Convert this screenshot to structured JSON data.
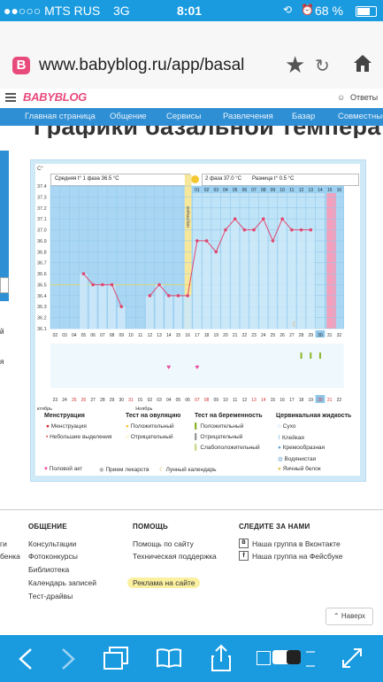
{
  "status_bar": {
    "carrier": "●●○○○ MTS RUS",
    "network": "3G",
    "time": "8:01",
    "battery": "68 %"
  },
  "browser": {
    "url": "www.babyblog.ru/app/basal"
  },
  "site": {
    "logo": "BABYBLOG",
    "answers": "Ответы"
  },
  "nav": {
    "items": [
      "Главная страница",
      "Общение",
      "Сервисы",
      "Развлечения",
      "Базар",
      "Совместные"
    ]
  },
  "page_title": "Графики базальной температуры",
  "chart_header": {
    "phase1": "Средняя t° 1 фаза 36.5 °C",
    "phase2": "2 фаза 37.0 °C",
    "diff": "Разница t° 0.5 °C",
    "unit": "C°",
    "ovulation": "овуляция"
  },
  "chart_data": {
    "type": "line",
    "y_ticks": [
      "37.4",
      "37.3",
      "37.2",
      "37.1",
      "37.0",
      "36.9",
      "36.8",
      "36.7",
      "36.6",
      "36.5",
      "36.4",
      "36.3",
      "36.2",
      "36.1"
    ],
    "ylim": [
      36.1,
      37.4
    ],
    "cycle_days": [
      "02",
      "03",
      "04",
      "05",
      "06",
      "07",
      "08",
      "09",
      "10",
      "11",
      "12",
      "13",
      "14",
      "15",
      "16",
      "17",
      "18",
      "19",
      "20",
      "21",
      "22",
      "23",
      "24",
      "25",
      "26",
      "27",
      "28",
      "29",
      "30",
      "31",
      "32"
    ],
    "cycle_days_phase2_top": [
      "01",
      "02",
      "03",
      "04",
      "05",
      "06",
      "07",
      "08",
      "09",
      "10",
      "11",
      "12",
      "13",
      "14",
      "15",
      "16"
    ],
    "dates": [
      "23",
      "24",
      "25",
      "26",
      "27",
      "28",
      "29",
      "30",
      "31",
      "01",
      "02",
      "03",
      "04",
      "05",
      "06",
      "07",
      "08",
      "09",
      "10",
      "11",
      "12",
      "13",
      "14",
      "15",
      "16",
      "17",
      "18",
      "19",
      "20",
      "21",
      "22"
    ],
    "month1": "ктябрь",
    "month2": "Ноябрь",
    "series": [
      {
        "values": [
          null,
          null,
          null,
          36.6,
          36.5,
          36.5,
          36.5,
          36.3,
          null,
          null,
          36.4,
          36.5,
          36.4,
          36.4,
          36.4,
          36.9,
          36.9,
          36.8,
          37.0,
          37.1,
          37.0,
          37.0,
          37.1,
          36.9,
          37.1,
          37.0,
          37.0,
          37.0,
          null,
          null,
          null
        ]
      }
    ]
  },
  "legend": {
    "menstruation": {
      "title": "Менструация",
      "items": [
        "Менструация",
        "Небольшие выделения"
      ]
    },
    "ovulation_test": {
      "title": "Тест на овуляцию",
      "items": [
        "Положительный",
        "Отрицательный"
      ]
    },
    "pregnancy_test": {
      "title": "Тест на беременность",
      "items": [
        "Положительный",
        "Отрицательный",
        "Слабоположительный"
      ]
    },
    "cervical": {
      "title": "Цервикальная жидкость",
      "items": [
        "Сухо",
        "Клейкая",
        "Кремообразная",
        "Водянистая",
        "Яичный белок"
      ]
    },
    "bottom": [
      "Половой акт",
      "Прием лекарств",
      "Лунный календарь"
    ]
  },
  "footer": {
    "col1": {
      "title": "ОБЩЕНИЕ",
      "items": [
        "Консультации",
        "Фотоконкурсы",
        "Библиотека",
        "Календарь записей",
        "Тест-драйвы"
      ]
    },
    "col2": {
      "title": "ПОМОЩЬ",
      "items": [
        "Помощь по сайту",
        "Техническая поддержка",
        "Реклама на сайте"
      ]
    },
    "col3": {
      "title": "СЛЕДИТЕ ЗА НАМИ",
      "items": [
        "Наша группа в Вконтакте",
        "Наша группа на Фейсбуке"
      ]
    },
    "side_cut": [
      "ги",
      "бенка"
    ],
    "back_to_top": "Наверх"
  },
  "left_cut": [
    "й",
    "я",
    "и"
  ],
  "colors": {
    "accent": "#1a9be0",
    "nav": "#2f8fd4",
    "chart_bg": "#cfe9f7",
    "line": "#e04870"
  }
}
